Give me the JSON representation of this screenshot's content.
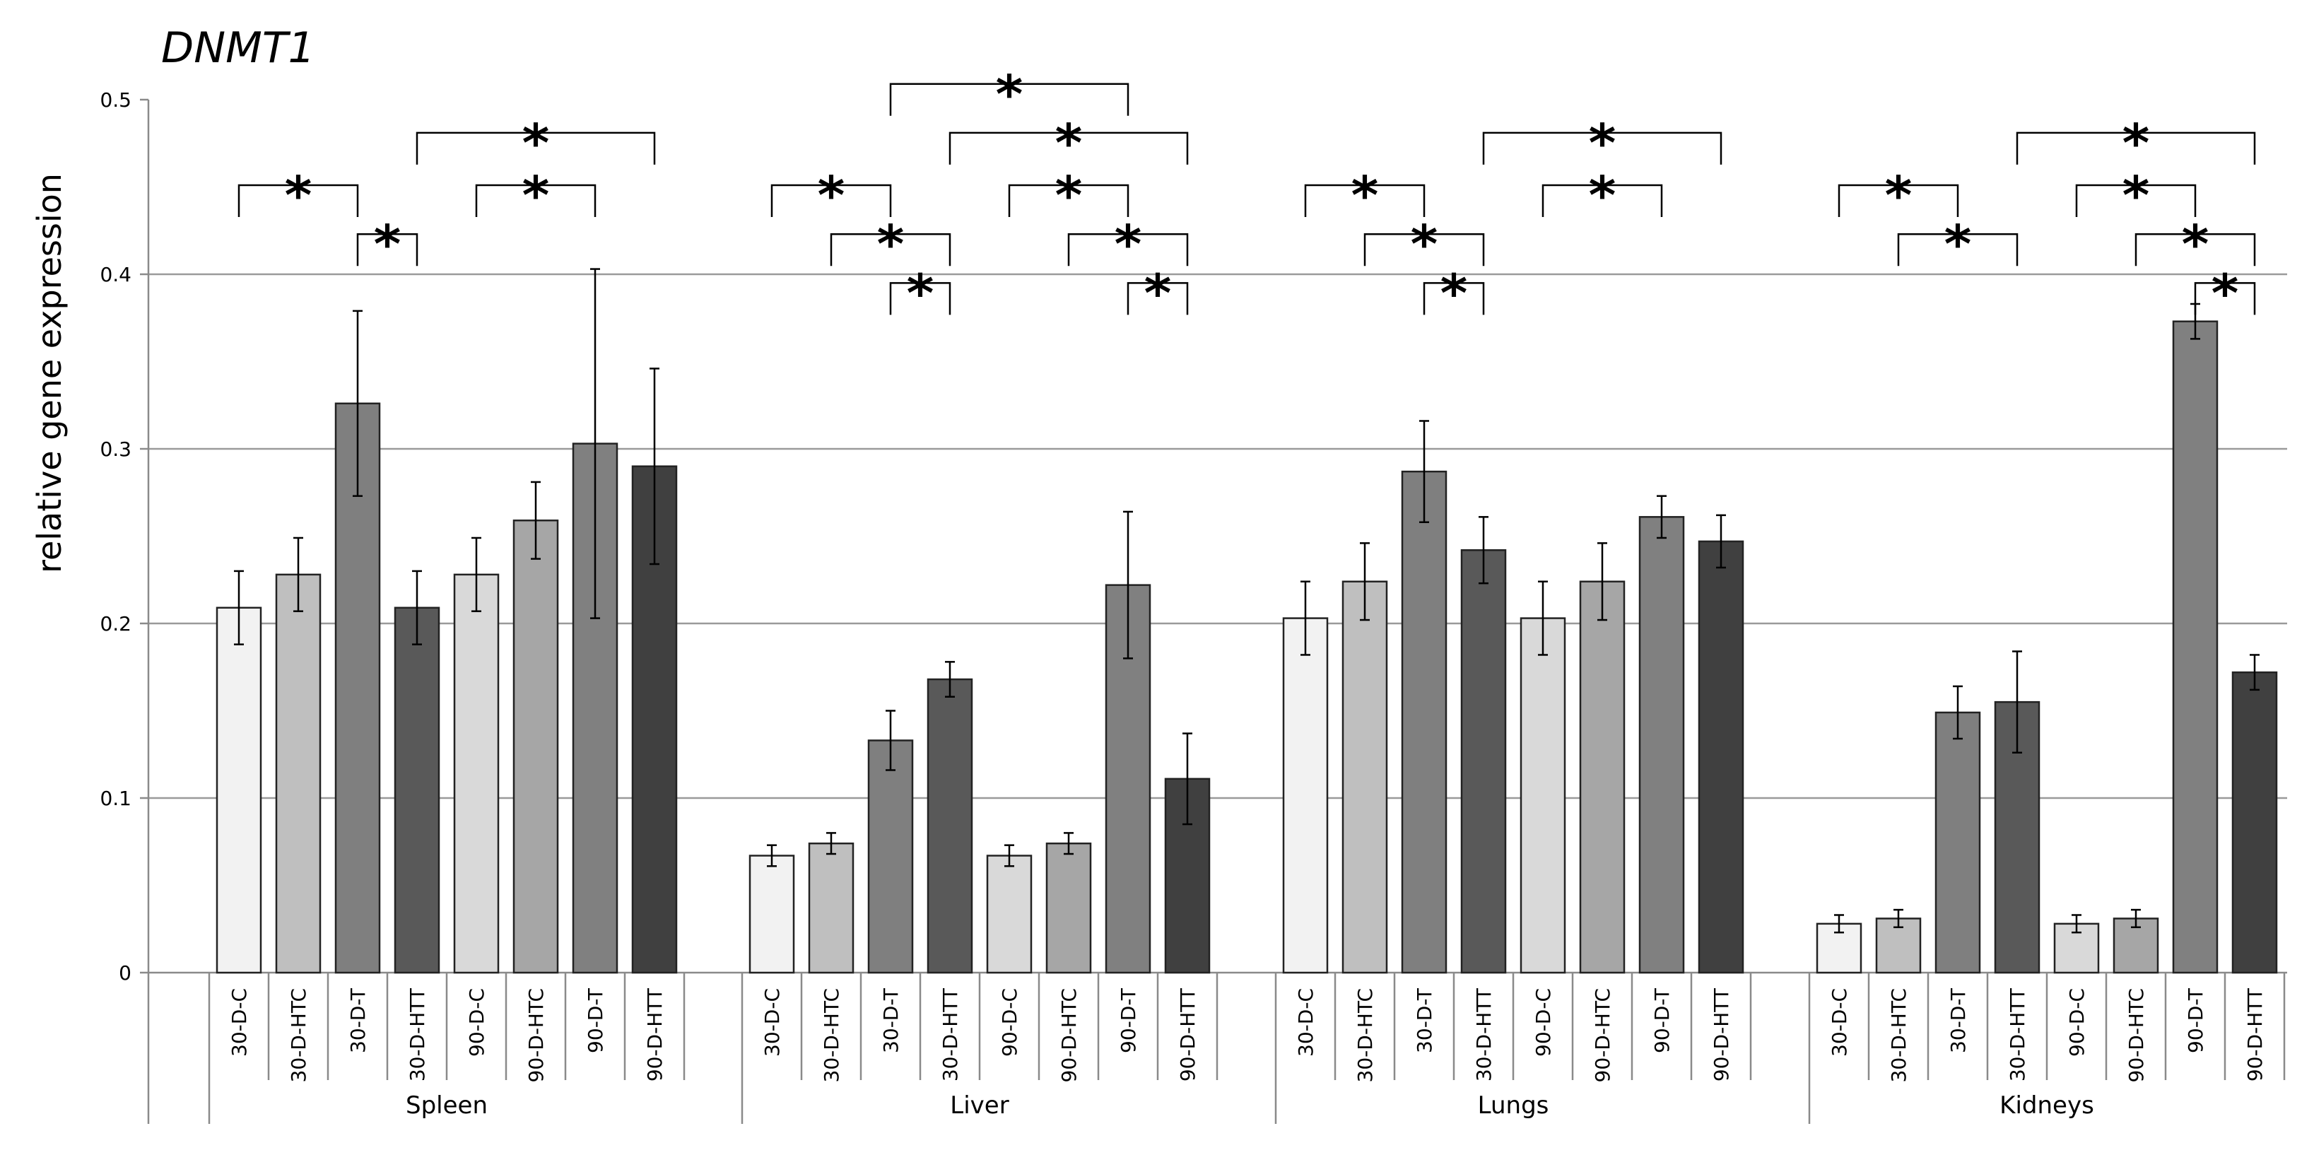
{
  "chart_data": {
    "type": "bar",
    "title": "DNMT1",
    "ylabel": "relative  gene  expression",
    "ylim": [
      0,
      0.5
    ],
    "yticks": [
      0,
      0.1,
      0.2,
      0.3,
      0.4,
      0.5
    ],
    "ytick_labels": [
      "0",
      "0.1",
      "0.2",
      "0.3",
      "0.4",
      "0.5"
    ],
    "grid": true,
    "categories": [
      "30-D-C",
      "30-D-HTC",
      "30-D-T",
      "30-D-HTT",
      "90-D-C",
      "90-D-HTC",
      "90-D-T",
      "90-D-HTT"
    ],
    "bar_colors": [
      "#f2f2f2",
      "#bfbfbf",
      "#7f7f7f",
      "#595959",
      "#d9d9d9",
      "#a6a6a6",
      "#808080",
      "#404040"
    ],
    "groups": [
      {
        "name": "Spleen",
        "values": [
          0.209,
          0.228,
          0.326,
          0.209,
          0.228,
          0.259,
          0.303,
          0.29
        ],
        "errors": [
          0.021,
          0.021,
          0.053,
          0.021,
          0.021,
          0.022,
          0.1,
          0.056
        ],
        "significance": [
          {
            "from": 0,
            "to": 2,
            "y": 0.451,
            "label": "*"
          },
          {
            "from": 2,
            "to": 3,
            "y": 0.423,
            "label": "*"
          },
          {
            "from": 3,
            "to": 7,
            "y": 0.481,
            "label": "*"
          },
          {
            "from": 4,
            "to": 6,
            "y": 0.451,
            "label": "*"
          }
        ]
      },
      {
        "name": "Liver",
        "values": [
          0.067,
          0.074,
          0.133,
          0.168,
          0.067,
          0.074,
          0.222,
          0.111
        ],
        "errors": [
          0.006,
          0.006,
          0.017,
          0.01,
          0.006,
          0.006,
          0.042,
          0.026
        ],
        "significance": [
          {
            "from": 2,
            "to": 6,
            "y": 0.509,
            "label": "*"
          },
          {
            "from": 0,
            "to": 2,
            "y": 0.451,
            "label": "*"
          },
          {
            "from": 3,
            "to": 7,
            "y": 0.481,
            "label": "*"
          },
          {
            "from": 1,
            "to": 3,
            "y": 0.423,
            "label": "*"
          },
          {
            "from": 4,
            "to": 6,
            "y": 0.451,
            "label": "*"
          },
          {
            "from": 5,
            "to": 7,
            "y": 0.423,
            "label": "*"
          },
          {
            "from": 2,
            "to": 3,
            "y": 0.395,
            "label": "*"
          },
          {
            "from": 6,
            "to": 7,
            "y": 0.395,
            "label": "*"
          }
        ]
      },
      {
        "name": "Lungs",
        "values": [
          0.203,
          0.224,
          0.287,
          0.242,
          0.203,
          0.224,
          0.261,
          0.247
        ],
        "errors": [
          0.021,
          0.022,
          0.029,
          0.019,
          0.021,
          0.022,
          0.012,
          0.015
        ],
        "significance": [
          {
            "from": 3,
            "to": 7,
            "y": 0.481,
            "label": "*"
          },
          {
            "from": 0,
            "to": 2,
            "y": 0.451,
            "label": "*"
          },
          {
            "from": 4,
            "to": 6,
            "y": 0.451,
            "label": "*"
          },
          {
            "from": 1,
            "to": 3,
            "y": 0.423,
            "label": "*"
          },
          {
            "from": 2,
            "to": 3,
            "y": 0.395,
            "label": "*"
          }
        ]
      },
      {
        "name": "Kidneys",
        "values": [
          0.028,
          0.031,
          0.149,
          0.155,
          0.028,
          0.031,
          0.373,
          0.172
        ],
        "errors": [
          0.005,
          0.005,
          0.015,
          0.029,
          0.005,
          0.005,
          0.01,
          0.01
        ],
        "significance": [
          {
            "from": 3,
            "to": 7,
            "y": 0.481,
            "label": "*"
          },
          {
            "from": 0,
            "to": 2,
            "y": 0.451,
            "label": "*"
          },
          {
            "from": 4,
            "to": 6,
            "y": 0.451,
            "label": "*"
          },
          {
            "from": 1,
            "to": 3,
            "y": 0.423,
            "label": "*"
          },
          {
            "from": 5,
            "to": 7,
            "y": 0.423,
            "label": "*"
          },
          {
            "from": 6,
            "to": 7,
            "y": 0.395,
            "label": "*"
          }
        ]
      }
    ]
  }
}
